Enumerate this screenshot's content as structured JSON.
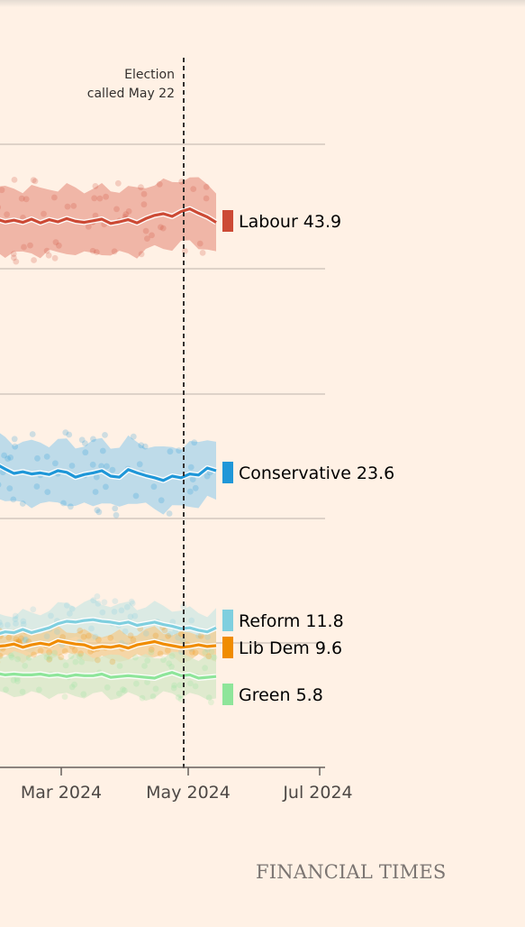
{
  "brand": "FINANCIAL TIMES",
  "chart_data": {
    "type": "line",
    "x_axis": {
      "ticks": [
        "Mar 2024",
        "May 2024",
        "Jul 2024"
      ]
    },
    "annotation": {
      "lines": [
        "Election",
        "called May 22"
      ],
      "date": "2024-05-22"
    },
    "series": [
      {
        "name": "Labour",
        "latest": "43.9",
        "color": "#cc4a35",
        "band_color": "#eba291",
        "panel": 0,
        "values": [
          44.5,
          44.0,
          44.3,
          43.9,
          44.5,
          43.8,
          44.4,
          44.0,
          44.6,
          44.1,
          43.9,
          44.2,
          44.5,
          43.7,
          44.0,
          44.4,
          43.8,
          44.6,
          45.2,
          45.5,
          45.0,
          45.9,
          46.4,
          45.6,
          44.9,
          43.9
        ]
      },
      {
        "name": "Conservative",
        "latest": "23.6",
        "color": "#1f97d8",
        "band_color": "#a8d3ea",
        "panel": 1,
        "values": [
          24.8,
          23.9,
          23.1,
          23.4,
          23.0,
          23.2,
          22.9,
          23.6,
          23.3,
          22.4,
          22.9,
          23.2,
          23.6,
          22.6,
          22.4,
          23.8,
          23.2,
          22.7,
          22.3,
          21.8,
          22.6,
          22.3,
          23.0,
          22.8,
          24.1,
          23.6
        ]
      },
      {
        "name": "Reform",
        "latest": "11.8",
        "color": "#7fcfdf",
        "band_color": "#cfe7e3",
        "panel": 2,
        "values": [
          11.0,
          11.3,
          11.2,
          11.6,
          11.2,
          11.5,
          11.8,
          12.3,
          12.6,
          12.5,
          12.7,
          12.8,
          12.6,
          12.5,
          12.3,
          12.5,
          12.1,
          12.3,
          12.5,
          12.2,
          12.0,
          11.7,
          11.8,
          11.5,
          11.3,
          11.8
        ]
      },
      {
        "name": "Lib Dem",
        "latest": "9.6",
        "color": "#f08c00",
        "band_color": "#f2cc91",
        "panel": 2,
        "values": [
          9.5,
          9.6,
          9.8,
          9.4,
          9.7,
          9.9,
          9.7,
          10.2,
          10.0,
          9.8,
          9.7,
          9.3,
          9.5,
          9.4,
          9.6,
          9.3,
          9.7,
          9.9,
          10.1,
          9.8,
          9.6,
          9.4,
          9.5,
          9.7,
          9.5,
          9.6
        ]
      },
      {
        "name": "Green",
        "latest": "5.8",
        "color": "#8ee59a",
        "band_color": "#d4e7c6",
        "panel": 2,
        "values": [
          6.2,
          6.0,
          6.1,
          6.0,
          6.0,
          6.1,
          5.9,
          6.0,
          5.8,
          6.0,
          5.9,
          5.9,
          6.1,
          5.7,
          5.8,
          5.9,
          5.8,
          5.7,
          5.6,
          6.0,
          6.3,
          5.9,
          6.0,
          5.6,
          5.7,
          5.8
        ]
      }
    ]
  }
}
